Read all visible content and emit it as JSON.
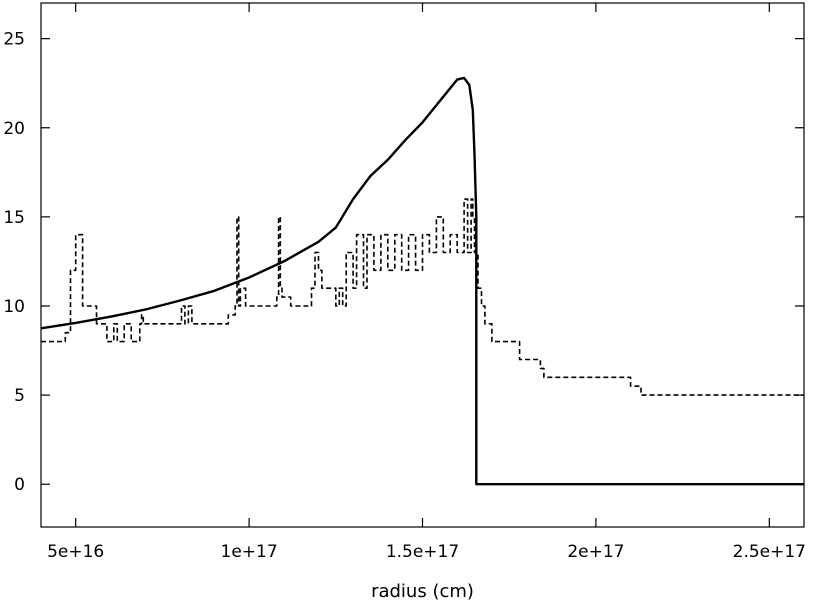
{
  "chart_data": {
    "type": "line",
    "title": "",
    "xlabel": "radius (cm)",
    "ylabel": "",
    "xlim": [
      4e+16,
      2.6e+17
    ],
    "ylim": [
      -2.4,
      27
    ],
    "grid": false,
    "legend": "none",
    "x_ticks": [
      {
        "value": 5e+16,
        "label": "5e+16"
      },
      {
        "value": 1e+17,
        "label": "1e+17"
      },
      {
        "value": 1.5e+17,
        "label": "1.5e+17"
      },
      {
        "value": 2e+17,
        "label": "2e+17"
      },
      {
        "value": 2.5e+17,
        "label": "2.5e+17"
      }
    ],
    "y_ticks": [
      {
        "value": 0,
        "label": "0"
      },
      {
        "value": 5,
        "label": "5"
      },
      {
        "value": 10,
        "label": "10"
      },
      {
        "value": 15,
        "label": "15"
      },
      {
        "value": 20,
        "label": "20"
      },
      {
        "value": 25,
        "label": "25"
      }
    ],
    "series": [
      {
        "style": "solid",
        "color": "#000000",
        "x": [
          4e+16,
          5e+16,
          6e+16,
          7e+16,
          8e+16,
          9e+16,
          1e+17,
          1.1e+17,
          1.2e+17,
          1.25e+17,
          1.3e+17,
          1.35e+17,
          1.4e+17,
          1.45e+17,
          1.5e+17,
          1.55e+17,
          1.6e+17,
          1.62e+17,
          1.635e+17,
          1.645e+17,
          1.65e+17,
          1.655e+17,
          1.655e+17,
          2.6e+17
        ],
        "y": [
          8.75,
          9.05,
          9.4,
          9.8,
          10.3,
          10.85,
          11.6,
          12.5,
          13.6,
          14.4,
          16.0,
          17.3,
          18.2,
          19.3,
          20.3,
          21.5,
          22.7,
          22.8,
          22.4,
          21.0,
          18.5,
          15.0,
          0,
          0
        ]
      },
      {
        "style": "dashed",
        "color": "#000000",
        "x": [
          4e+16,
          4.5e+16,
          4.7e+16,
          4.85e+16,
          5e+16,
          5.2e+16,
          5.4e+16,
          5.6e+16,
          5.9e+16,
          6e+16,
          6.1e+16,
          6.2e+16,
          6.4e+16,
          6.6e+16,
          6.8e+16,
          6.85e+16,
          6.9e+16,
          6.95e+16,
          7.4e+16,
          7.9e+16,
          8.05e+16,
          8.15e+16,
          8.25e+16,
          8.35e+16,
          8.5e+16,
          9.3e+16,
          9.4e+16,
          9.6e+16,
          9.65e+16,
          9.7e+16,
          9.75e+16,
          9.9e+16,
          1e+17,
          1.02e+17,
          1.06e+17,
          1.08e+17,
          1.085e+17,
          1.09e+17,
          1.095e+17,
          1.12e+17,
          1.17e+17,
          1.18e+17,
          1.19e+17,
          1.2e+17,
          1.21e+17,
          1.22e+17,
          1.25e+17,
          1.26e+17,
          1.27e+17,
          1.28e+17,
          1.3e+17,
          1.31e+17,
          1.33e+17,
          1.34e+17,
          1.36e+17,
          1.38e+17,
          1.4e+17,
          1.42e+17,
          1.44e+17,
          1.46e+17,
          1.48e+17,
          1.5e+17,
          1.52e+17,
          1.54e+17,
          1.56e+17,
          1.58e+17,
          1.6e+17,
          1.62e+17,
          1.63e+17,
          1.64e+17,
          1.645e+17,
          1.65e+17,
          1.655e+17,
          1.66e+17,
          1.67e+17,
          1.68e+17,
          1.7e+17,
          1.75e+17,
          1.78e+17,
          1.83e+17,
          1.84e+17,
          1.85e+17,
          2.08e+17,
          2.1e+17,
          2.13e+17,
          2.6e+17
        ],
        "y": [
          8,
          8,
          8.5,
          12,
          14,
          10,
          10,
          9,
          8,
          8,
          9,
          8,
          9,
          8,
          8,
          9,
          9.5,
          9,
          9,
          9,
          10,
          9,
          10,
          9,
          9,
          9,
          9.5,
          10,
          15,
          10,
          11,
          10,
          10,
          10,
          10,
          10.5,
          15,
          11,
          10.5,
          10,
          10,
          11,
          13,
          12,
          11,
          11,
          10,
          11,
          10,
          13,
          11,
          14,
          11,
          14,
          12,
          14,
          12,
          14,
          12,
          14,
          12,
          14,
          13,
          15,
          13,
          14,
          13,
          16,
          13,
          16,
          15,
          13,
          13,
          11,
          10,
          9,
          8,
          8,
          7,
          7,
          6.5,
          6,
          6,
          5.5,
          5,
          5
        ]
      }
    ]
  }
}
